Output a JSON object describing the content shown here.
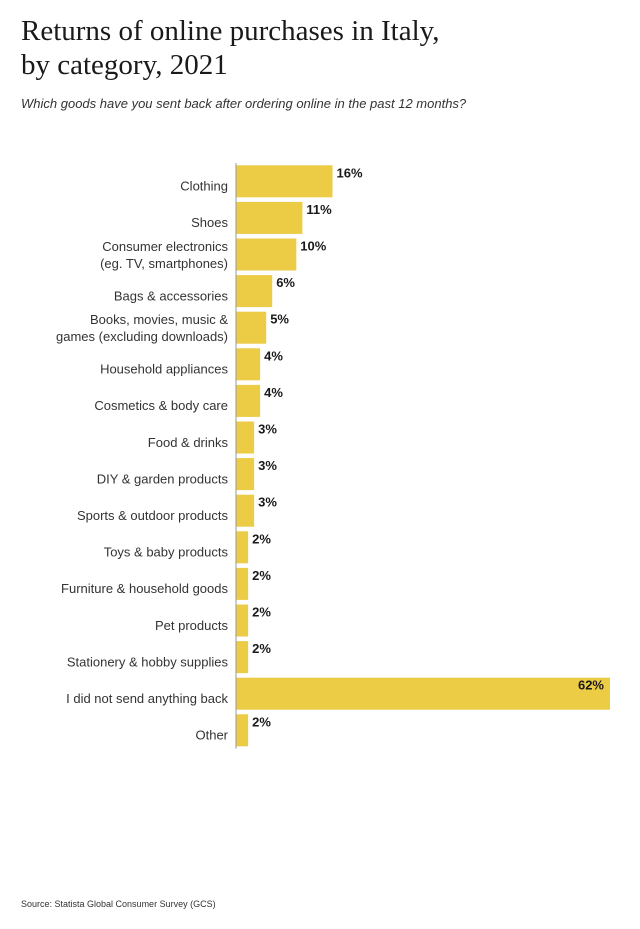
{
  "header": {
    "title_line1": "Returns of online purchases in Italy,",
    "title_line2": "by category, 2021",
    "subtitle": "Which goods have you sent back after ordering online in the past 12 months?"
  },
  "footer": {
    "source": "Source: Statista Global Consumer Survey (GCS)"
  },
  "colors": {
    "bar": "#ECCB45",
    "axis": "#999999"
  },
  "chart_data": {
    "type": "bar",
    "orientation": "horizontal",
    "title": "Returns of online purchases in Italy, by category, 2021",
    "subtitle": "Which goods have you sent back after ordering online in the past 12 months?",
    "xlabel": "",
    "ylabel": "",
    "xlim": [
      0,
      62
    ],
    "grid": false,
    "categories": [
      [
        "Clothing"
      ],
      [
        "Shoes"
      ],
      [
        "Consumer electronics",
        "(eg. TV, smartphones)"
      ],
      [
        "Bags & accessories"
      ],
      [
        "Books, movies, music &",
        "games (excluding downloads)"
      ],
      [
        "Household appliances"
      ],
      [
        "Cosmetics & body care"
      ],
      [
        "Food & drinks"
      ],
      [
        "DIY & garden products"
      ],
      [
        "Sports & outdoor products"
      ],
      [
        "Toys & baby products"
      ],
      [
        "Furniture & household goods"
      ],
      [
        "Pet products"
      ],
      [
        "Stationery & hobby supplies"
      ],
      [
        "I did not send anything back"
      ],
      [
        "Other"
      ]
    ],
    "values": [
      16,
      11,
      10,
      6,
      5,
      4,
      4,
      3,
      3,
      3,
      2,
      2,
      2,
      2,
      62,
      2
    ],
    "value_labels": [
      "16%",
      "11%",
      "10%",
      "6%",
      "5%",
      "4%",
      "4%",
      "3%",
      "3%",
      "3%",
      "2%",
      "2%",
      "2%",
      "2%",
      "62%",
      "2%"
    ]
  }
}
